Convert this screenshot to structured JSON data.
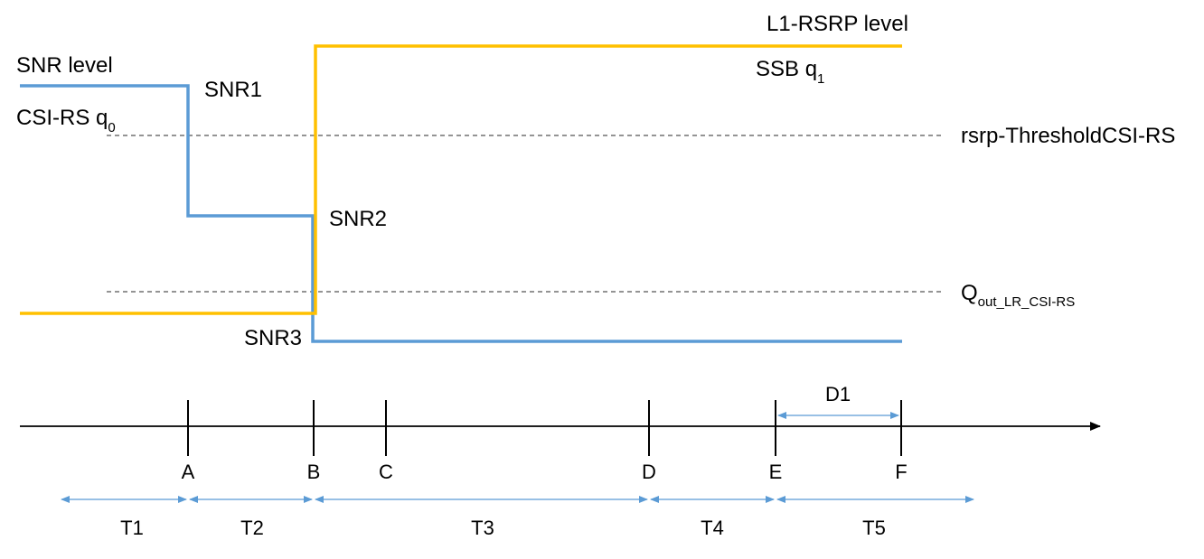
{
  "colors": {
    "snr_line": "#5b9bd5",
    "rsrp_line": "#ffc000",
    "threshold_line": "#555555",
    "axis": "#000000",
    "interval_arrow": "#5b9bd5"
  },
  "labels": {
    "snr_level": "SNR level",
    "csi_rs_main": "CSI-RS q",
    "csi_rs_sub": "0",
    "snr1": "SNR1",
    "snr2": "SNR2",
    "snr3": "SNR3",
    "l1_rsrp_level": "L1-RSRP level",
    "ssb_main": "SSB  q",
    "ssb_sub": "1",
    "rsrp_threshold": "rsrp-ThresholdCSI-RS",
    "qout_main": "Q",
    "qout_sub": "out_LR_CSI-RS"
  },
  "timeline": {
    "points": [
      "A",
      "B",
      "C",
      "D",
      "E",
      "F"
    ],
    "intervals": [
      "T1",
      "T2",
      "T3",
      "T4",
      "T5"
    ],
    "duration_label": "D1"
  }
}
